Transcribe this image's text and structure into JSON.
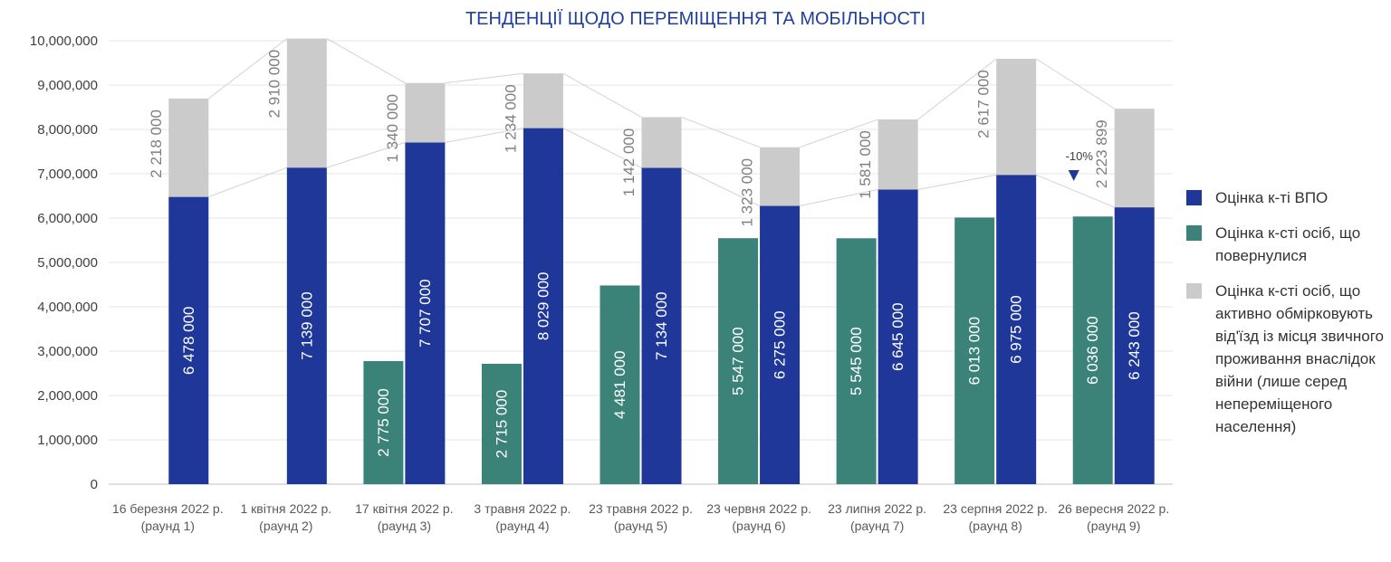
{
  "chart_data": {
    "type": "bar",
    "title": "ТЕНДЕНЦІЇ ЩОДО ПЕРЕМІЩЕННЯ ТА МОБІЛЬНОСТІ",
    "ylim": [
      0,
      10000000
    ],
    "yticks": [
      "0",
      "1,000,000",
      "2,000,000",
      "3,000,000",
      "4,000,000",
      "5,000,000",
      "6,000,000",
      "7,000,000",
      "8,000,000",
      "9,000,000",
      "10,000,000"
    ],
    "categories": [
      [
        "16 березня 2022 р.",
        "(раунд 1)"
      ],
      [
        "1 квітня 2022 р.",
        "(раунд 2)"
      ],
      [
        "17 квітня 2022 р.",
        "(раунд 3)"
      ],
      [
        "3 травня 2022 р.",
        "(раунд 4)"
      ],
      [
        "23 травня 2022 р.",
        "(раунд 5)"
      ],
      [
        "23 червня 2022 р.",
        "(раунд 6)"
      ],
      [
        "23 липня 2022 р.",
        "(раунд 7)"
      ],
      [
        "23 серпня 2022 р.",
        "(раунд 8)"
      ],
      [
        "26 вересня 2022 р.",
        "(раунд 9)"
      ]
    ],
    "series": [
      {
        "name": "Оцінка к-ті ВПО",
        "color": "#1e3799",
        "values": [
          6478000,
          7139000,
          7707000,
          8029000,
          7134000,
          6275000,
          6645000,
          6975000,
          6243000
        ],
        "labels": [
          "6 478 000",
          "7 139 000",
          "7 707 000",
          "8 029 000",
          "7 134 000",
          "6 275 000",
          "6 645 000",
          "6 975 000",
          "6 243 000"
        ]
      },
      {
        "name": "Оцінка к-сті осіб, що повернулися",
        "color": "#3b8279",
        "values": [
          null,
          null,
          2775000,
          2715000,
          4481000,
          5547000,
          5545000,
          6013000,
          6036000
        ],
        "labels": [
          "",
          "",
          "2 775 000",
          "2 715 000",
          "4 481 000",
          "5 547 000",
          "5 545 000",
          "6 013 000",
          "6 036 000"
        ]
      },
      {
        "name": "Оцінка к-сті осіб, що активно обмірковують від'їзд із місця звичного проживання внаслідок війни (лише серед непереміщеного населення)",
        "color": "#cccbcc",
        "values": [
          2218000,
          2910000,
          1340000,
          1234000,
          1142000,
          1323000,
          1581000,
          2617000,
          2223899
        ],
        "labels": [
          "2 218 000",
          "2 910 000",
          "1 340 000",
          "1 234 000",
          "1 142 000",
          "1 323 000",
          "1 581 000",
          "2 617 000",
          "2 223 899"
        ]
      }
    ],
    "annotations": [
      {
        "text": "-10%",
        "marker": "down-triangle",
        "category_index": 8,
        "color": "#1e3799"
      }
    ],
    "legend_position": "right",
    "grid": true
  },
  "legend": {
    "items": [
      {
        "label": "Оцінка к-ті ВПО",
        "color": "#1e3799"
      },
      {
        "label": "Оцінка к-сті осіб, що повернулися",
        "color": "#3b8279"
      },
      {
        "label": "Оцінка к-сті осіб, що активно обмірковують від'їзд із місця звичного проживання внаслідок війни (лише серед непереміщеного населення)",
        "color": "#cccbcc"
      }
    ]
  }
}
